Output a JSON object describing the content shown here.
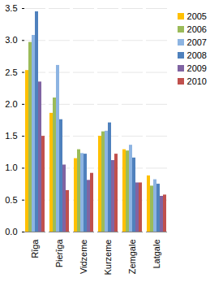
{
  "chart_data": {
    "type": "bar",
    "categories": [
      "Rīga",
      "Pierīga",
      "Vidzeme",
      "Kurzeme",
      "Zemgale",
      "Latgale"
    ],
    "series": [
      {
        "name": "2005",
        "color": "#FFC000",
        "values": [
          2.53,
          1.86,
          1.15,
          1.5,
          1.29,
          0.88
        ]
      },
      {
        "name": "2006",
        "color": "#9BBB59",
        "values": [
          2.97,
          2.1,
          1.29,
          1.57,
          1.27,
          0.72
        ]
      },
      {
        "name": "2007",
        "color": "#8DB4E2",
        "values": [
          3.08,
          2.61,
          1.23,
          1.58,
          1.36,
          0.82
        ]
      },
      {
        "name": "2008",
        "color": "#4F81BD",
        "values": [
          3.45,
          1.76,
          1.22,
          1.71,
          1.16,
          0.75
        ]
      },
      {
        "name": "2009",
        "color": "#8064A2",
        "values": [
          2.35,
          1.05,
          0.81,
          1.12,
          0.77,
          0.56
        ]
      },
      {
        "name": "2010",
        "color": "#C0504D",
        "values": [
          1.5,
          0.65,
          0.92,
          1.22,
          0.77,
          0.58
        ]
      }
    ],
    "ylim": [
      0,
      3.5
    ],
    "yticks": [
      {
        "value": 0,
        "label": "0.0"
      },
      0.5,
      {
        "value": 1,
        "label": "1.0"
      },
      1.5,
      {
        "value": 2,
        "label": "2.0"
      },
      2.5,
      {
        "value": 3,
        "label": "3.0"
      },
      3.5
    ],
    "grid": true,
    "legend": "right"
  }
}
